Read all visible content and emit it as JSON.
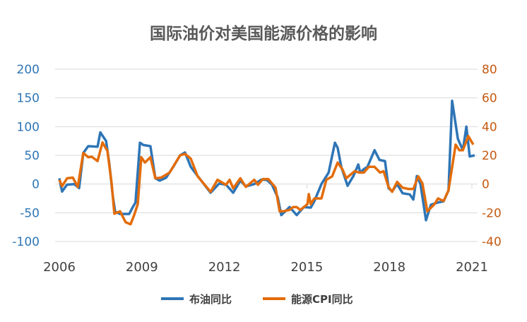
{
  "chart_data": {
    "type": "line",
    "title": "国际油价对美国能源价格的影响",
    "x_ticks": [
      "2006",
      "2009",
      "2012",
      "2015",
      "2018",
      "2021"
    ],
    "xlim": [
      2006,
      2021.3
    ],
    "left_axis": {
      "ylim": [
        -100,
        200
      ],
      "ticks": [
        200,
        150,
        100,
        50,
        0,
        -50,
        -100
      ]
    },
    "right_axis": {
      "ylim": [
        -40,
        80
      ],
      "ticks": [
        80,
        60,
        40,
        20,
        0,
        -20,
        -40
      ]
    },
    "grid": true,
    "legend_position": "bottom",
    "series": [
      {
        "name": "布油同比",
        "axis": "left",
        "color": "#2E75B6",
        "points": [
          [
            2006.0,
            10
          ],
          [
            2006.1,
            -13
          ],
          [
            2006.28,
            -1
          ],
          [
            2006.54,
            0
          ],
          [
            2006.72,
            -7
          ],
          [
            2006.87,
            54
          ],
          [
            2007.05,
            66
          ],
          [
            2007.39,
            65
          ],
          [
            2007.49,
            90
          ],
          [
            2007.7,
            75
          ],
          [
            2007.82,
            34
          ],
          [
            2007.95,
            -23
          ],
          [
            2008.03,
            -48
          ],
          [
            2008.21,
            -52
          ],
          [
            2008.34,
            -52
          ],
          [
            2008.54,
            -52
          ],
          [
            2008.67,
            -40
          ],
          [
            2008.77,
            -32
          ],
          [
            2008.93,
            72
          ],
          [
            2009.06,
            68
          ],
          [
            2009.31,
            66
          ],
          [
            2009.49,
            10
          ],
          [
            2009.65,
            6
          ],
          [
            2009.88,
            11
          ],
          [
            2010.14,
            30
          ],
          [
            2010.39,
            50
          ],
          [
            2010.57,
            55
          ],
          [
            2010.78,
            30
          ],
          [
            2011.03,
            14
          ],
          [
            2011.5,
            -15
          ],
          [
            2011.81,
            1
          ],
          [
            2012.06,
            -1
          ],
          [
            2012.32,
            -15
          ],
          [
            2012.58,
            6
          ],
          [
            2012.78,
            -4
          ],
          [
            2013.09,
            0
          ],
          [
            2013.35,
            8
          ],
          [
            2013.55,
            7
          ],
          [
            2013.73,
            -1
          ],
          [
            2013.94,
            -23
          ],
          [
            2014.07,
            -54
          ],
          [
            2014.37,
            -40
          ],
          [
            2014.63,
            -54
          ],
          [
            2014.89,
            -40
          ],
          [
            2015.14,
            -41
          ],
          [
            2015.27,
            -30
          ],
          [
            2015.53,
            0
          ],
          [
            2015.79,
            20
          ],
          [
            2016.02,
            72
          ],
          [
            2016.12,
            63
          ],
          [
            2016.25,
            30
          ],
          [
            2016.48,
            -3
          ],
          [
            2016.69,
            14
          ],
          [
            2016.87,
            34
          ],
          [
            2016.94,
            20
          ],
          [
            2017.07,
            26
          ],
          [
            2017.2,
            30
          ],
          [
            2017.46,
            59
          ],
          [
            2017.64,
            42
          ],
          [
            2017.84,
            40
          ],
          [
            2017.97,
            -7
          ],
          [
            2018.1,
            -13
          ],
          [
            2018.28,
            0
          ],
          [
            2018.48,
            -16
          ],
          [
            2018.74,
            -18
          ],
          [
            2018.87,
            -27
          ],
          [
            2019.0,
            14
          ],
          [
            2019.13,
            0
          ],
          [
            2019.33,
            -63
          ],
          [
            2019.51,
            -36
          ],
          [
            2019.77,
            -32
          ],
          [
            2019.97,
            -30
          ],
          [
            2020.15,
            -11
          ],
          [
            2020.28,
            145
          ],
          [
            2020.49,
            79
          ],
          [
            2020.67,
            59
          ],
          [
            2020.8,
            100
          ],
          [
            2020.92,
            48
          ],
          [
            2021.1,
            50
          ]
        ]
      },
      {
        "name": "能源CPI同比",
        "axis": "right",
        "color": "#E36C09",
        "points": [
          [
            2006.0,
            3
          ],
          [
            2006.1,
            -1.5
          ],
          [
            2006.28,
            4
          ],
          [
            2006.49,
            4.5
          ],
          [
            2006.67,
            -2
          ],
          [
            2006.87,
            21.6
          ],
          [
            2007.05,
            18.7
          ],
          [
            2007.18,
            19
          ],
          [
            2007.39,
            16
          ],
          [
            2007.57,
            29
          ],
          [
            2007.75,
            23
          ],
          [
            2007.9,
            0.5
          ],
          [
            2008.0,
            -20.6
          ],
          [
            2008.21,
            -19
          ],
          [
            2008.41,
            -26.5
          ],
          [
            2008.59,
            -28
          ],
          [
            2008.72,
            -21.6
          ],
          [
            2008.85,
            -14
          ],
          [
            2008.98,
            18.7
          ],
          [
            2009.11,
            15
          ],
          [
            2009.31,
            18.7
          ],
          [
            2009.49,
            4
          ],
          [
            2009.7,
            4.5
          ],
          [
            2010.01,
            8
          ],
          [
            2010.39,
            20
          ],
          [
            2010.57,
            21
          ],
          [
            2010.78,
            17.7
          ],
          [
            2011.03,
            5.4
          ],
          [
            2011.5,
            -5.4
          ],
          [
            2011.75,
            3
          ],
          [
            2012.06,
            -0.5
          ],
          [
            2012.19,
            3
          ],
          [
            2012.32,
            -3
          ],
          [
            2012.58,
            4
          ],
          [
            2012.78,
            -2
          ],
          [
            2013.09,
            3
          ],
          [
            2013.22,
            -0.5
          ],
          [
            2013.4,
            3.5
          ],
          [
            2013.6,
            3.5
          ],
          [
            2013.86,
            -2.5
          ],
          [
            2014.01,
            -19
          ],
          [
            2014.12,
            -19
          ],
          [
            2014.37,
            -18
          ],
          [
            2014.5,
            -16
          ],
          [
            2014.63,
            -16
          ],
          [
            2014.76,
            -18
          ],
          [
            2015.02,
            -14
          ],
          [
            2015.07,
            -7
          ],
          [
            2015.14,
            -14
          ],
          [
            2015.27,
            -10
          ],
          [
            2015.53,
            -10
          ],
          [
            2015.71,
            3
          ],
          [
            2015.92,
            5.4
          ],
          [
            2016.12,
            15
          ],
          [
            2016.3,
            10
          ],
          [
            2016.43,
            4
          ],
          [
            2016.74,
            9
          ],
          [
            2016.89,
            8
          ],
          [
            2017.07,
            8
          ],
          [
            2017.25,
            12
          ],
          [
            2017.46,
            12
          ],
          [
            2017.66,
            8
          ],
          [
            2017.79,
            9
          ],
          [
            2017.97,
            -2
          ],
          [
            2018.1,
            -5.4
          ],
          [
            2018.28,
            1.5
          ],
          [
            2018.48,
            -2.5
          ],
          [
            2018.69,
            -3.4
          ],
          [
            2018.87,
            -3.4
          ],
          [
            2019.05,
            5.4
          ],
          [
            2019.2,
            0.5
          ],
          [
            2019.38,
            -19
          ],
          [
            2019.64,
            -14
          ],
          [
            2019.77,
            -10
          ],
          [
            2019.97,
            -11.8
          ],
          [
            2020.15,
            -4.4
          ],
          [
            2020.28,
            11.8
          ],
          [
            2020.41,
            27.5
          ],
          [
            2020.54,
            23.6
          ],
          [
            2020.67,
            23.6
          ],
          [
            2020.87,
            33.4
          ],
          [
            2021.05,
            27.5
          ]
        ]
      }
    ]
  }
}
